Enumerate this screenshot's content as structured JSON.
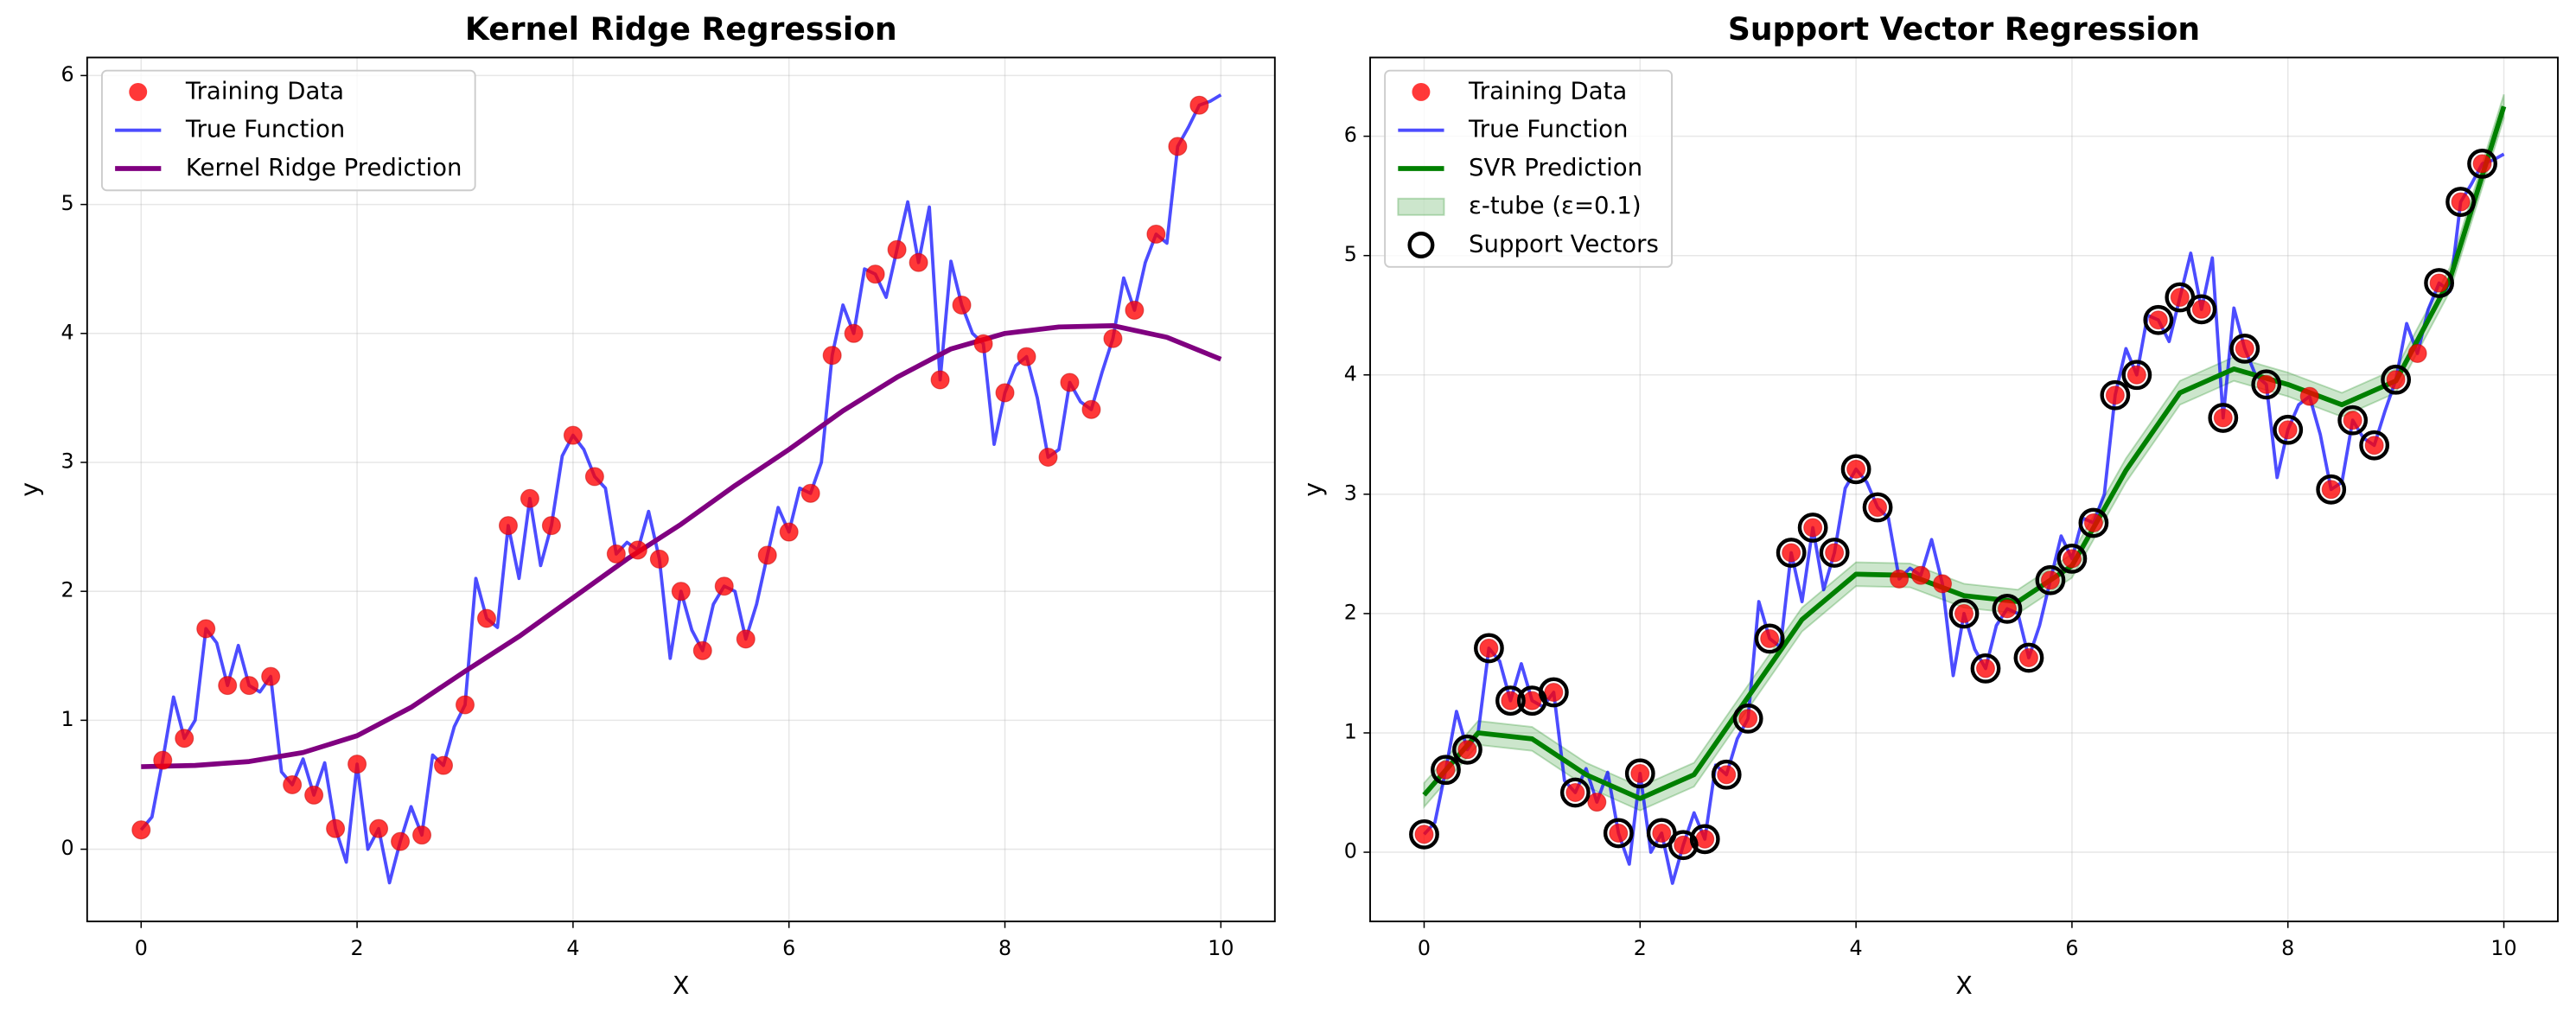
{
  "chart_data": [
    {
      "type": "line",
      "title": "Kernel Ridge Regression",
      "xlabel": "X",
      "ylabel": "y",
      "xlim": [
        -0.5,
        10.5
      ],
      "ylim": [
        -0.56,
        6.14
      ],
      "xticks": [
        0,
        2,
        4,
        6,
        8,
        10
      ],
      "yticks": [
        0,
        1,
        2,
        3,
        4,
        5,
        6
      ],
      "grid": true,
      "legend": "upper left",
      "series": [
        {
          "name": "Training Data",
          "type": "scatter",
          "color": "#ff0000",
          "x": [
            0,
            0.2,
            0.4,
            0.6,
            0.8,
            1.0,
            1.2,
            1.4,
            1.6,
            1.8,
            2.0,
            2.2,
            2.4,
            2.6,
            2.8,
            3.0,
            3.2,
            3.4,
            3.6,
            3.8,
            4.0,
            4.2,
            4.4,
            4.6,
            4.8,
            5.0,
            5.2,
            5.4,
            5.6,
            5.8,
            6.0,
            6.2,
            6.4,
            6.6,
            6.8,
            7.0,
            7.2,
            7.4,
            7.6,
            7.8,
            8.0,
            8.2,
            8.4,
            8.6,
            8.8,
            9.0,
            9.2,
            9.4,
            9.6,
            9.8
          ],
          "values": [
            0.15,
            0.69,
            0.86,
            1.71,
            1.27,
            1.27,
            1.34,
            0.5,
            0.42,
            0.16,
            0.66,
            0.16,
            0.06,
            0.11,
            0.65,
            1.12,
            1.79,
            2.51,
            2.72,
            2.51,
            3.21,
            2.89,
            2.29,
            2.32,
            2.25,
            2.0,
            1.54,
            2.04,
            1.63,
            2.28,
            2.46,
            2.76,
            3.83,
            4.0,
            4.46,
            4.65,
            4.55,
            3.64,
            4.22,
            3.92,
            3.54,
            3.82,
            3.04,
            3.62,
            3.41,
            3.96,
            4.18,
            4.77,
            5.45,
            5.77
          ]
        },
        {
          "name": "True Function",
          "type": "line",
          "color": "#0000ff",
          "width": 2,
          "x": [
            0,
            0.1,
            0.2,
            0.3,
            0.4,
            0.5,
            0.6,
            0.7,
            0.8,
            0.9,
            1.0,
            1.1,
            1.2,
            1.3,
            1.4,
            1.5,
            1.6,
            1.7,
            1.8,
            1.9,
            2.0,
            2.1,
            2.2,
            2.3,
            2.4,
            2.5,
            2.6,
            2.7,
            2.8,
            2.9,
            3.0,
            3.1,
            3.2,
            3.3,
            3.4,
            3.5,
            3.6,
            3.7,
            3.8,
            3.9,
            4.0,
            4.1,
            4.2,
            4.3,
            4.4,
            4.5,
            4.6,
            4.7,
            4.8,
            4.9,
            5.0,
            5.1,
            5.2,
            5.3,
            5.4,
            5.5,
            5.6,
            5.7,
            5.8,
            5.9,
            6.0,
            6.1,
            6.2,
            6.3,
            6.4,
            6.5,
            6.6,
            6.7,
            6.8,
            6.9,
            7.0,
            7.1,
            7.2,
            7.3,
            7.4,
            7.5,
            7.6,
            7.7,
            7.8,
            7.9,
            8.0,
            8.1,
            8.2,
            8.3,
            8.4,
            8.5,
            8.6,
            8.7,
            8.8,
            8.9,
            9.0,
            9.1,
            9.2,
            9.3,
            9.4,
            9.5,
            9.6,
            9.7,
            9.8,
            9.9,
            10.0
          ],
          "values": [
            0.15,
            0.25,
            0.69,
            1.18,
            0.86,
            1.0,
            1.71,
            1.6,
            1.27,
            1.58,
            1.27,
            1.22,
            1.34,
            0.6,
            0.5,
            0.7,
            0.42,
            0.67,
            0.16,
            -0.1,
            0.66,
            0.0,
            0.16,
            -0.26,
            0.06,
            0.33,
            0.11,
            0.73,
            0.65,
            0.95,
            1.12,
            2.1,
            1.79,
            1.72,
            2.51,
            2.1,
            2.72,
            2.2,
            2.51,
            3.05,
            3.21,
            3.1,
            2.89,
            2.8,
            2.29,
            2.38,
            2.32,
            2.62,
            2.25,
            1.48,
            2.0,
            1.7,
            1.54,
            1.9,
            2.04,
            2.0,
            1.63,
            1.9,
            2.28,
            2.65,
            2.46,
            2.8,
            2.76,
            3.0,
            3.83,
            4.22,
            4.0,
            4.5,
            4.46,
            4.28,
            4.65,
            5.02,
            4.55,
            4.98,
            3.64,
            4.56,
            4.22,
            4.0,
            3.92,
            3.14,
            3.54,
            3.75,
            3.82,
            3.5,
            3.04,
            3.1,
            3.62,
            3.47,
            3.41,
            3.7,
            3.96,
            4.43,
            4.18,
            4.55,
            4.77,
            4.7,
            5.45,
            5.6,
            5.77,
            5.8,
            5.85
          ]
        },
        {
          "name": "Kernel Ridge Prediction",
          "type": "line",
          "color": "#800080",
          "width": 3,
          "x": [
            0,
            0.5,
            1.0,
            1.5,
            2.0,
            2.5,
            3.0,
            3.5,
            4.0,
            4.5,
            5.0,
            5.5,
            6.0,
            6.5,
            7.0,
            7.5,
            8.0,
            8.5,
            9.0,
            9.5,
            10.0
          ],
          "values": [
            0.64,
            0.65,
            0.68,
            0.75,
            0.88,
            1.1,
            1.38,
            1.65,
            1.95,
            2.25,
            2.52,
            2.82,
            3.1,
            3.4,
            3.66,
            3.88,
            4.0,
            4.05,
            4.06,
            3.97,
            3.8
          ]
        }
      ]
    },
    {
      "type": "line",
      "title": "Support Vector Regression",
      "xlabel": "X",
      "ylabel": "y",
      "xlim": [
        -0.5,
        10.5
      ],
      "ylim": [
        -0.58,
        6.66
      ],
      "xticks": [
        0,
        2,
        4,
        6,
        8,
        10
      ],
      "yticks": [
        0,
        1,
        2,
        3,
        4,
        5,
        6
      ],
      "grid": true,
      "legend": "upper left",
      "series": [
        {
          "name": "Training Data",
          "type": "scatter",
          "color": "#ff0000",
          "x": [
            0,
            0.2,
            0.4,
            0.6,
            0.8,
            1.0,
            1.2,
            1.4,
            1.6,
            1.8,
            2.0,
            2.2,
            2.4,
            2.6,
            2.8,
            3.0,
            3.2,
            3.4,
            3.6,
            3.8,
            4.0,
            4.2,
            4.4,
            4.6,
            4.8,
            5.0,
            5.2,
            5.4,
            5.6,
            5.8,
            6.0,
            6.2,
            6.4,
            6.6,
            6.8,
            7.0,
            7.2,
            7.4,
            7.6,
            7.8,
            8.0,
            8.2,
            8.4,
            8.6,
            8.8,
            9.0,
            9.2,
            9.4,
            9.6,
            9.8
          ],
          "values": [
            0.15,
            0.69,
            0.86,
            1.71,
            1.27,
            1.27,
            1.34,
            0.5,
            0.42,
            0.16,
            0.66,
            0.16,
            0.06,
            0.11,
            0.65,
            1.12,
            1.79,
            2.51,
            2.72,
            2.51,
            3.21,
            2.89,
            2.29,
            2.32,
            2.25,
            2.0,
            1.54,
            2.04,
            1.63,
            2.28,
            2.46,
            2.76,
            3.83,
            4.0,
            4.46,
            4.65,
            4.55,
            3.64,
            4.22,
            3.92,
            3.54,
            3.82,
            3.04,
            3.62,
            3.41,
            3.96,
            4.18,
            4.77,
            5.45,
            5.77
          ]
        },
        {
          "name": "True Function",
          "type": "line",
          "color": "#0000ff",
          "width": 2,
          "x": [
            0,
            0.1,
            0.2,
            0.3,
            0.4,
            0.5,
            0.6,
            0.7,
            0.8,
            0.9,
            1.0,
            1.1,
            1.2,
            1.3,
            1.4,
            1.5,
            1.6,
            1.7,
            1.8,
            1.9,
            2.0,
            2.1,
            2.2,
            2.3,
            2.4,
            2.5,
            2.6,
            2.7,
            2.8,
            2.9,
            3.0,
            3.1,
            3.2,
            3.3,
            3.4,
            3.5,
            3.6,
            3.7,
            3.8,
            3.9,
            4.0,
            4.1,
            4.2,
            4.3,
            4.4,
            4.5,
            4.6,
            4.7,
            4.8,
            4.9,
            5.0,
            5.1,
            5.2,
            5.3,
            5.4,
            5.5,
            5.6,
            5.7,
            5.8,
            5.9,
            6.0,
            6.1,
            6.2,
            6.3,
            6.4,
            6.5,
            6.6,
            6.7,
            6.8,
            6.9,
            7.0,
            7.1,
            7.2,
            7.3,
            7.4,
            7.5,
            7.6,
            7.7,
            7.8,
            7.9,
            8.0,
            8.1,
            8.2,
            8.3,
            8.4,
            8.5,
            8.6,
            8.7,
            8.8,
            8.9,
            9.0,
            9.1,
            9.2,
            9.3,
            9.4,
            9.5,
            9.6,
            9.7,
            9.8,
            9.9,
            10.0
          ],
          "values": [
            0.15,
            0.25,
            0.69,
            1.18,
            0.86,
            1.0,
            1.71,
            1.6,
            1.27,
            1.58,
            1.27,
            1.22,
            1.34,
            0.6,
            0.5,
            0.7,
            0.42,
            0.67,
            0.16,
            -0.1,
            0.66,
            0.0,
            0.16,
            -0.26,
            0.06,
            0.33,
            0.11,
            0.73,
            0.65,
            0.95,
            1.12,
            2.1,
            1.79,
            1.72,
            2.51,
            2.1,
            2.72,
            2.2,
            2.51,
            3.05,
            3.21,
            3.1,
            2.89,
            2.8,
            2.29,
            2.38,
            2.32,
            2.62,
            2.25,
            1.48,
            2.0,
            1.7,
            1.54,
            1.9,
            2.04,
            2.0,
            1.63,
            1.9,
            2.28,
            2.65,
            2.46,
            2.8,
            2.76,
            3.0,
            3.83,
            4.22,
            4.0,
            4.5,
            4.46,
            4.28,
            4.65,
            5.02,
            4.55,
            4.98,
            3.64,
            4.56,
            4.22,
            4.0,
            3.92,
            3.14,
            3.54,
            3.75,
            3.82,
            3.5,
            3.04,
            3.1,
            3.62,
            3.47,
            3.41,
            3.7,
            3.96,
            4.43,
            4.18,
            4.55,
            4.77,
            4.7,
            5.45,
            5.6,
            5.77,
            5.8,
            5.85
          ]
        },
        {
          "name": "SVR Prediction",
          "type": "line",
          "color": "#008000",
          "width": 3,
          "x": [
            0,
            0.5,
            1.0,
            1.5,
            2.0,
            2.5,
            3.0,
            3.5,
            4.0,
            4.5,
            5.0,
            5.5,
            6.0,
            6.5,
            7.0,
            7.5,
            8.0,
            8.5,
            9.0,
            9.5,
            10.0
          ],
          "values": [
            0.48,
            1.0,
            0.95,
            0.65,
            0.45,
            0.65,
            1.3,
            1.95,
            2.33,
            2.32,
            2.15,
            2.1,
            2.4,
            3.2,
            3.85,
            4.05,
            3.92,
            3.75,
            3.95,
            4.8,
            6.25
          ]
        },
        {
          "name": "ε-tube (ε=0.1)",
          "type": "band",
          "color": "#008000",
          "epsilon": 0.1
        },
        {
          "name": "Support Vectors",
          "type": "ring",
          "color": "#000000",
          "x": [
            0,
            0.2,
            0.4,
            0.6,
            0.8,
            1.0,
            1.2,
            1.4,
            1.8,
            2.0,
            2.2,
            2.4,
            2.6,
            2.8,
            3.0,
            3.2,
            3.4,
            3.6,
            3.8,
            4.0,
            4.2,
            5.0,
            5.2,
            5.4,
            5.6,
            5.8,
            6.0,
            6.2,
            6.4,
            6.6,
            6.8,
            7.0,
            7.2,
            7.4,
            7.6,
            7.8,
            8.0,
            8.4,
            8.6,
            8.8,
            9.0,
            9.4,
            9.6,
            9.8
          ],
          "values": [
            0.15,
            0.69,
            0.86,
            1.71,
            1.27,
            1.27,
            1.34,
            0.5,
            0.16,
            0.66,
            0.16,
            0.06,
            0.11,
            0.65,
            1.12,
            1.79,
            2.51,
            2.72,
            2.51,
            3.21,
            2.89,
            2.0,
            1.54,
            2.04,
            1.63,
            2.28,
            2.46,
            2.76,
            3.83,
            4.0,
            4.46,
            4.65,
            4.55,
            3.64,
            4.22,
            3.92,
            3.54,
            3.04,
            3.62,
            3.41,
            3.96,
            4.77,
            5.45,
            5.77
          ]
        }
      ]
    }
  ]
}
